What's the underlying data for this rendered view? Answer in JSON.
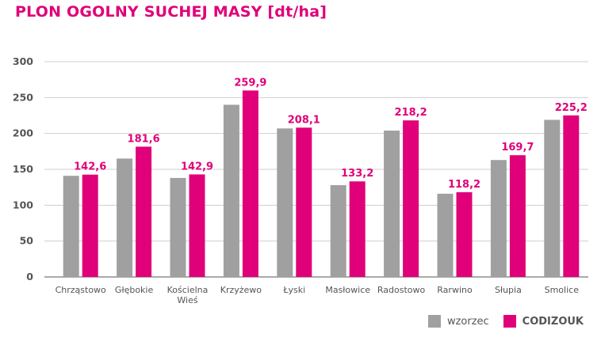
{
  "chart_data": {
    "type": "bar",
    "title": "PLON OGOLNY SUCHEJ MASY [dt/ha]",
    "xlabel": "",
    "ylabel": "",
    "ylim": [
      0,
      300
    ],
    "yticks": [
      0,
      50,
      100,
      150,
      200,
      250,
      300
    ],
    "grid": true,
    "legend_position": "bottom-right",
    "categories": [
      "Chrząstowo",
      "Głębokie",
      "Kościelna Wieś",
      "Krzyżewo",
      "Łyski",
      "Masłowice",
      "Radostowo",
      "Rarwino",
      "Słupia",
      "Smolice"
    ],
    "series": [
      {
        "name": "wzorzec",
        "color": "#a0a0a0",
        "values": [
          141,
          165,
          138,
          240,
          207,
          128,
          204,
          116,
          163,
          219
        ]
      },
      {
        "name": "CODIZOUK",
        "color": "#e0007a",
        "values": [
          142.6,
          181.6,
          142.9,
          259.9,
          208.1,
          133.2,
          218.2,
          118.2,
          169.7,
          225.2
        ]
      }
    ],
    "data_labels": [
      "142,6",
      "181,6",
      "142,9",
      "259,9",
      "208,1",
      "133,2",
      "218,2",
      "118,2",
      "169,7",
      "225,2"
    ]
  }
}
